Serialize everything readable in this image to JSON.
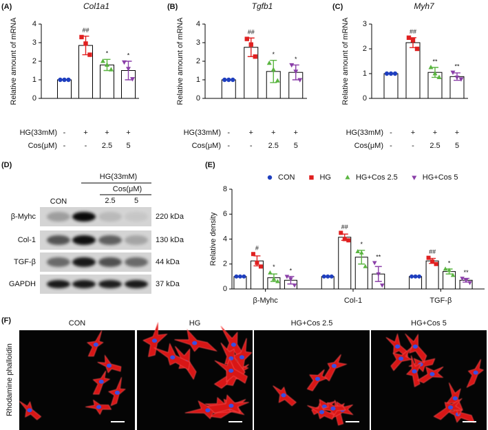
{
  "panel_labels": [
    "(A)",
    "(B)",
    "(C)",
    "(D)",
    "(E)",
    "(F)"
  ],
  "chart_data": [
    {
      "type": "bar",
      "title": "Col1a1",
      "ylabel": "Relative amount of mRNA",
      "ylim": [
        0,
        4
      ],
      "yticks": [
        0,
        1,
        2,
        3,
        4
      ],
      "values": [
        1,
        2.85,
        1.8,
        1.5
      ],
      "errors": [
        0,
        0.5,
        0.3,
        0.5
      ],
      "points": [
        [
          1,
          1,
          1
        ],
        [
          3.3,
          2.95,
          2.35
        ],
        [
          2.0,
          1.8,
          1.55
        ],
        [
          1.95,
          1.6,
          1.05
        ]
      ],
      "annotations": [
        null,
        "##",
        "*",
        "*"
      ],
      "point_colors": [
        "#1f3fbf",
        "#e02020",
        "#5ab540",
        "#8a3fa8"
      ],
      "markers": [
        "circle",
        "square",
        "triangle",
        "triangle-down"
      ],
      "conditions": [
        {
          "label": "HG(33mM)",
          "values": [
            "-",
            "+",
            "+",
            "+"
          ]
        },
        {
          "label": "Cos(μM)",
          "values": [
            "-",
            "-",
            "2.5",
            "5"
          ]
        }
      ]
    },
    {
      "type": "bar",
      "title": "Tgfb1",
      "ylabel": "Relative amount of mRNA",
      "ylim": [
        0,
        4
      ],
      "yticks": [
        0,
        1,
        2,
        3,
        4
      ],
      "values": [
        1,
        2.75,
        1.45,
        1.4
      ],
      "errors": [
        0,
        0.5,
        0.6,
        0.4
      ],
      "points": [
        [
          1,
          1,
          1
        ],
        [
          3.2,
          2.9,
          2.25
        ],
        [
          1.9,
          1.55,
          0.95
        ],
        [
          1.8,
          1.45,
          1.0
        ]
      ],
      "annotations": [
        null,
        "##",
        "*",
        "*"
      ],
      "point_colors": [
        "#1f3fbf",
        "#e02020",
        "#5ab540",
        "#8a3fa8"
      ],
      "markers": [
        "circle",
        "square",
        "triangle",
        "triangle-down"
      ],
      "conditions": [
        {
          "label": "HG(33mM)",
          "values": [
            "-",
            "+",
            "+",
            "+"
          ]
        },
        {
          "label": "Cos(μM)",
          "values": [
            "-",
            "-",
            "2.5",
            "5"
          ]
        }
      ]
    },
    {
      "type": "bar",
      "title": "Myh7",
      "ylabel": "Relative amount of mRNA",
      "ylim": [
        0,
        3
      ],
      "yticks": [
        0,
        1,
        2,
        3
      ],
      "values": [
        1,
        2.25,
        1.05,
        0.88
      ],
      "errors": [
        0,
        0.2,
        0.2,
        0.15
      ],
      "points": [
        [
          1,
          1,
          1
        ],
        [
          2.45,
          2.35,
          2.0
        ],
        [
          1.25,
          1.0,
          0.85
        ],
        [
          1.05,
          0.85,
          0.78
        ]
      ],
      "annotations": [
        null,
        "##",
        "**",
        "**"
      ],
      "point_colors": [
        "#1f3fbf",
        "#e02020",
        "#5ab540",
        "#8a3fa8"
      ],
      "markers": [
        "circle",
        "square",
        "triangle",
        "triangle-down"
      ],
      "conditions": [
        {
          "label": "HG(33mM)",
          "values": [
            "-",
            "+",
            "+",
            "+"
          ]
        },
        {
          "label": "Cos(μM)",
          "values": [
            "-",
            "-",
            "2.5",
            "5"
          ]
        }
      ]
    },
    {
      "type": "grouped_bar",
      "ylabel": "Relative density",
      "ylim": [
        0,
        8
      ],
      "yticks": [
        0,
        2,
        4,
        6,
        8
      ],
      "categories": [
        "β-Myhc",
        "Col-1",
        "TGF-β"
      ],
      "series": [
        {
          "name": "CON",
          "color": "#1f3fbf",
          "marker": "circle",
          "values": [
            1,
            1,
            1
          ],
          "errors": [
            0,
            0,
            0
          ],
          "points": [
            [
              1,
              1,
              1
            ],
            [
              1,
              1,
              1
            ],
            [
              1,
              1,
              1
            ]
          ],
          "annotations": [
            null,
            null,
            null
          ]
        },
        {
          "name": "HG",
          "color": "#e02020",
          "marker": "square",
          "values": [
            2.25,
            4.15,
            2.25
          ],
          "errors": [
            0.4,
            0.25,
            0.2
          ],
          "points": [
            [
              2.8,
              2.1,
              1.8
            ],
            [
              4.5,
              4.0,
              3.9
            ],
            [
              2.5,
              2.2,
              2.0
            ]
          ],
          "annotations": [
            "#",
            "##",
            "##"
          ]
        },
        {
          "name": "HG+Cos 2.5",
          "color": "#5ab540",
          "marker": "triangle",
          "values": [
            0.9,
            2.55,
            1.4
          ],
          "errors": [
            0.3,
            0.55,
            0.2
          ],
          "points": [
            [
              1.3,
              0.8,
              0.6
            ],
            [
              3.0,
              2.9,
              1.8
            ],
            [
              1.6,
              1.5,
              1.1
            ]
          ],
          "annotations": [
            "*",
            "*",
            "*"
          ]
        },
        {
          "name": "HG+Cos 5",
          "color": "#8a3fa8",
          "marker": "triangle-down",
          "values": [
            0.7,
            1.2,
            0.7
          ],
          "errors": [
            0.3,
            0.6,
            0.15
          ],
          "points": [
            [
              1.0,
              0.8,
              0.3
            ],
            [
              2.1,
              1.2,
              0.3
            ],
            [
              0.85,
              0.7,
              0.5
            ]
          ],
          "annotations": [
            "*",
            "**",
            "**"
          ]
        }
      ]
    }
  ],
  "blot": {
    "header": "HG(33mM)",
    "subheader": "Cos(μM)",
    "lane_labels": [
      "CON",
      null,
      "2.5",
      "5"
    ],
    "rows": [
      {
        "label": "β-Myhc",
        "size": "220 kDa"
      },
      {
        "label": "Col-1",
        "size": "130 kDa"
      },
      {
        "label": "TGF-β",
        "size": "44 kDa"
      },
      {
        "label": "GAPDH",
        "size": "37 kDa"
      }
    ]
  },
  "images": {
    "side_label": "Rhodamine phalloidin",
    "titles": [
      "CON",
      "HG",
      "HG+Cos 2.5",
      "HG+Cos 5"
    ]
  }
}
